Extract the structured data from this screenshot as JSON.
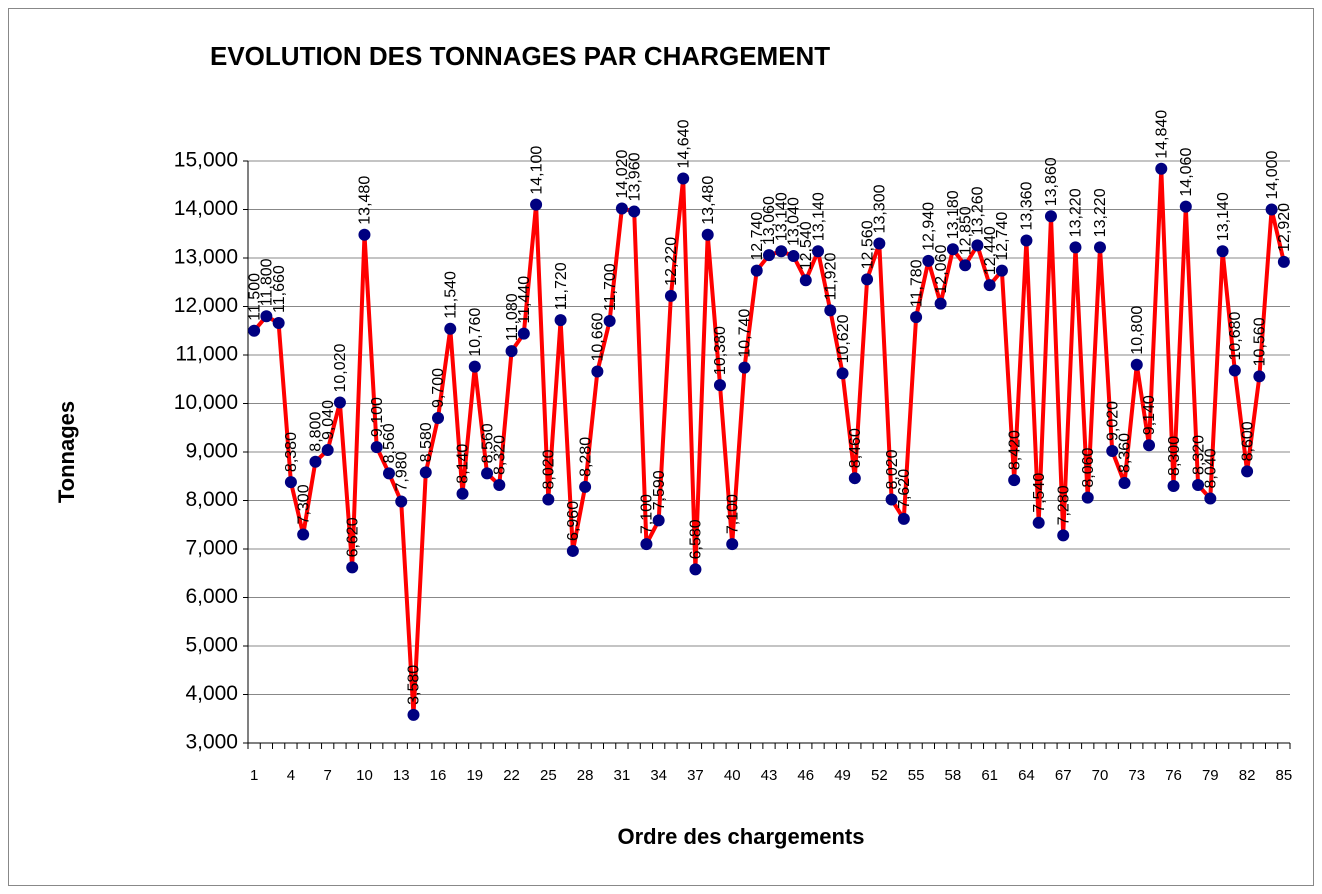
{
  "chart_data": {
    "type": "line",
    "title": "EVOLUTION DES TONNAGES PAR CHARGEMENT",
    "x_label": "Ordre des chargements",
    "y_label": "Tonnages",
    "categories": [
      1,
      null,
      null,
      4,
      null,
      null,
      7,
      null,
      null,
      10,
      null,
      null,
      13,
      null,
      null,
      16,
      null,
      null,
      19,
      null,
      null,
      22,
      null,
      null,
      25,
      null,
      null,
      28,
      null,
      null,
      31,
      null,
      null,
      34,
      null,
      null,
      37,
      null,
      null,
      40,
      null,
      null,
      43,
      null,
      null,
      46,
      null,
      null,
      49,
      null,
      null,
      52,
      null,
      null,
      55,
      null,
      null,
      58,
      null,
      null,
      61,
      null,
      null,
      64,
      null,
      null,
      67,
      null,
      null,
      70,
      null,
      null,
      73,
      null,
      null,
      76,
      null,
      null,
      79,
      null,
      null,
      82,
      null,
      null,
      85
    ],
    "series": [
      {
        "name": "Tonnages",
        "color": "#ff0000",
        "marker_color": "#000080",
        "values": [
          11500,
          11800,
          11660,
          8380,
          7300,
          8800,
          9040,
          10020,
          6620,
          13480,
          9100,
          8560,
          7980,
          3580,
          8580,
          9700,
          11540,
          8140,
          10760,
          8560,
          8320,
          11080,
          11440,
          14100,
          8020,
          11720,
          6960,
          8280,
          10660,
          11700,
          14020,
          13960,
          7100,
          7590,
          12220,
          14640,
          6580,
          13480,
          10380,
          7100,
          10740,
          12740,
          13060,
          13140,
          13040,
          12540,
          13140,
          11920,
          10620,
          8460,
          12560,
          13300,
          8020,
          7620,
          11780,
          12940,
          12060,
          13180,
          12850,
          13260,
          12440,
          12740,
          8420,
          13360,
          7540,
          13860,
          7280,
          13220,
          8060,
          13220,
          9020,
          8360,
          10800,
          9140,
          14840,
          8300,
          14060,
          8320,
          8040,
          13140,
          10680,
          8600,
          10560,
          14000,
          12920
        ],
        "value_labels": [
          "11,500",
          "11,800",
          "11,660",
          "8,380",
          "7,300",
          "8,800",
          "9,040",
          "10,020",
          "6,620",
          "13,480",
          "9,100",
          "8,560",
          "7,980",
          "3,580",
          "8,580",
          "9,700",
          "11,540",
          "8,140",
          "10,760",
          "8,560",
          "8,320",
          "11,080",
          "11,440",
          "14,100",
          "8,020",
          "11,720",
          "6,960",
          "8,280",
          "10,660",
          "11,700",
          "14,020",
          "13,960",
          "7,100",
          "7,590",
          "12,220",
          "14,640",
          "6,580",
          "13,480",
          "10,380",
          "7,100",
          "10,740",
          "12,740",
          "13,060",
          "13,140",
          "13,040",
          "12,540",
          "13,140",
          "11,920",
          "10,620",
          "8,460",
          "12,560",
          "13,300",
          "8,020",
          "7,620",
          "11,780",
          "12,940",
          "12,060",
          "13,180",
          "12,850",
          "13,260",
          "12,440",
          "12,740",
          "8,420",
          "13,360",
          "7,540",
          "13,860",
          "7,280",
          "13,220",
          "8,060",
          "13,220",
          "9,020",
          "8,360",
          "10,800",
          "9,140",
          "14,840",
          "8,300",
          "14,060",
          "8,320",
          "8,040",
          "13,140",
          "10,680",
          "8,600",
          "10,560",
          "14,000",
          "12,920"
        ]
      }
    ],
    "ylim": [
      3000,
      15000
    ],
    "yticks": [
      {
        "value": 3000,
        "label": "3,000"
      },
      {
        "value": 4000,
        "label": "4,000"
      },
      {
        "value": 5000,
        "label": "5,000"
      },
      {
        "value": 6000,
        "label": "6,000"
      },
      {
        "value": 7000,
        "label": "7,000"
      },
      {
        "value": 8000,
        "label": "8,000"
      },
      {
        "value": 9000,
        "label": "9,000"
      },
      {
        "value": 10000,
        "label": "10,000"
      },
      {
        "value": 11000,
        "label": "11,000"
      },
      {
        "value": 12000,
        "label": "12,000"
      },
      {
        "value": 13000,
        "label": "13,000"
      },
      {
        "value": 14000,
        "label": "14,000"
      },
      {
        "value": 15000,
        "label": "15,000"
      }
    ],
    "grid": true
  }
}
